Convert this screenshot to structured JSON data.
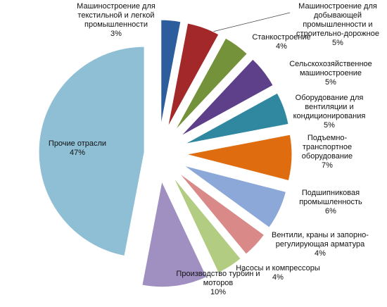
{
  "chart_data": {
    "type": "pie",
    "categories": [
      "Машиностроение для текстильной и легкой промышленности",
      "Машиностроение для добывающей промышленности и строительно-дорожное",
      "Станкостроение",
      "Сельскохозяйственное машиностроение",
      "Оборудование для вентиляции и кондиционирования",
      "Подъемно-транспортное оборудование",
      "Подшипниковая промышленность",
      "Вентили, краны и запорно-регулирующая арматура",
      "Насосы и компрессоры",
      "Производство турбин и моторов",
      "Прочие отрасли"
    ],
    "values": [
      3,
      5,
      4,
      5,
      5,
      7,
      6,
      4,
      4,
      10,
      47
    ],
    "value_labels": [
      "3%",
      "5%",
      "4%",
      "5%",
      "5%",
      "7%",
      "6%",
      "4%",
      "4%",
      "10%",
      "47%"
    ],
    "colors": [
      "#2c5d9c",
      "#a3282a",
      "#74923a",
      "#5d3f8a",
      "#2f88a0",
      "#e06c10",
      "#8ba8d8",
      "#d98a88",
      "#b2cc82",
      "#a090c2",
      "#8ebfd5"
    ]
  }
}
